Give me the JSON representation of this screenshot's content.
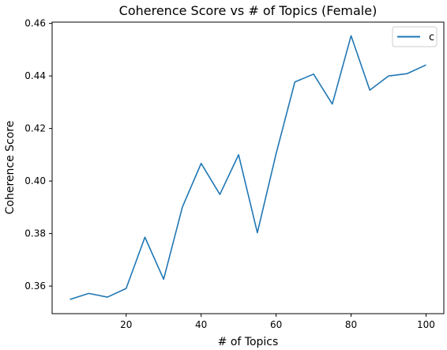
{
  "chart_data": {
    "type": "line",
    "title": "Coherence Score vs # of Topics (Female)",
    "xlabel": "# of Topics",
    "ylabel": "Coherence Score",
    "xlim": [
      0.25,
      104.75
    ],
    "ylim": [
      0.3495,
      0.4605
    ],
    "xticks": [
      20,
      40,
      60,
      80,
      100
    ],
    "xtick_labels": [
      "20",
      "40",
      "60",
      "80",
      "100"
    ],
    "yticks": [
      0.36,
      0.38,
      0.4,
      0.42,
      0.44,
      0.46
    ],
    "ytick_labels": [
      "0.36",
      "0.38",
      "0.40",
      "0.42",
      "0.44",
      "0.46"
    ],
    "grid": false,
    "legend_position": "top-right",
    "series": [
      {
        "name": "c",
        "color": "#1f77b4",
        "x": [
          5,
          10,
          15,
          20,
          25,
          30,
          35,
          40,
          45,
          50,
          55,
          60,
          65,
          70,
          75,
          80,
          85,
          90,
          95,
          100
        ],
        "y": [
          0.3549,
          0.3572,
          0.3558,
          0.3591,
          0.3786,
          0.3626,
          0.3901,
          0.4067,
          0.3949,
          0.41,
          0.3803,
          0.4104,
          0.4377,
          0.4407,
          0.4293,
          0.4553,
          0.4346,
          0.44,
          0.4409,
          0.4442
        ]
      }
    ]
  }
}
